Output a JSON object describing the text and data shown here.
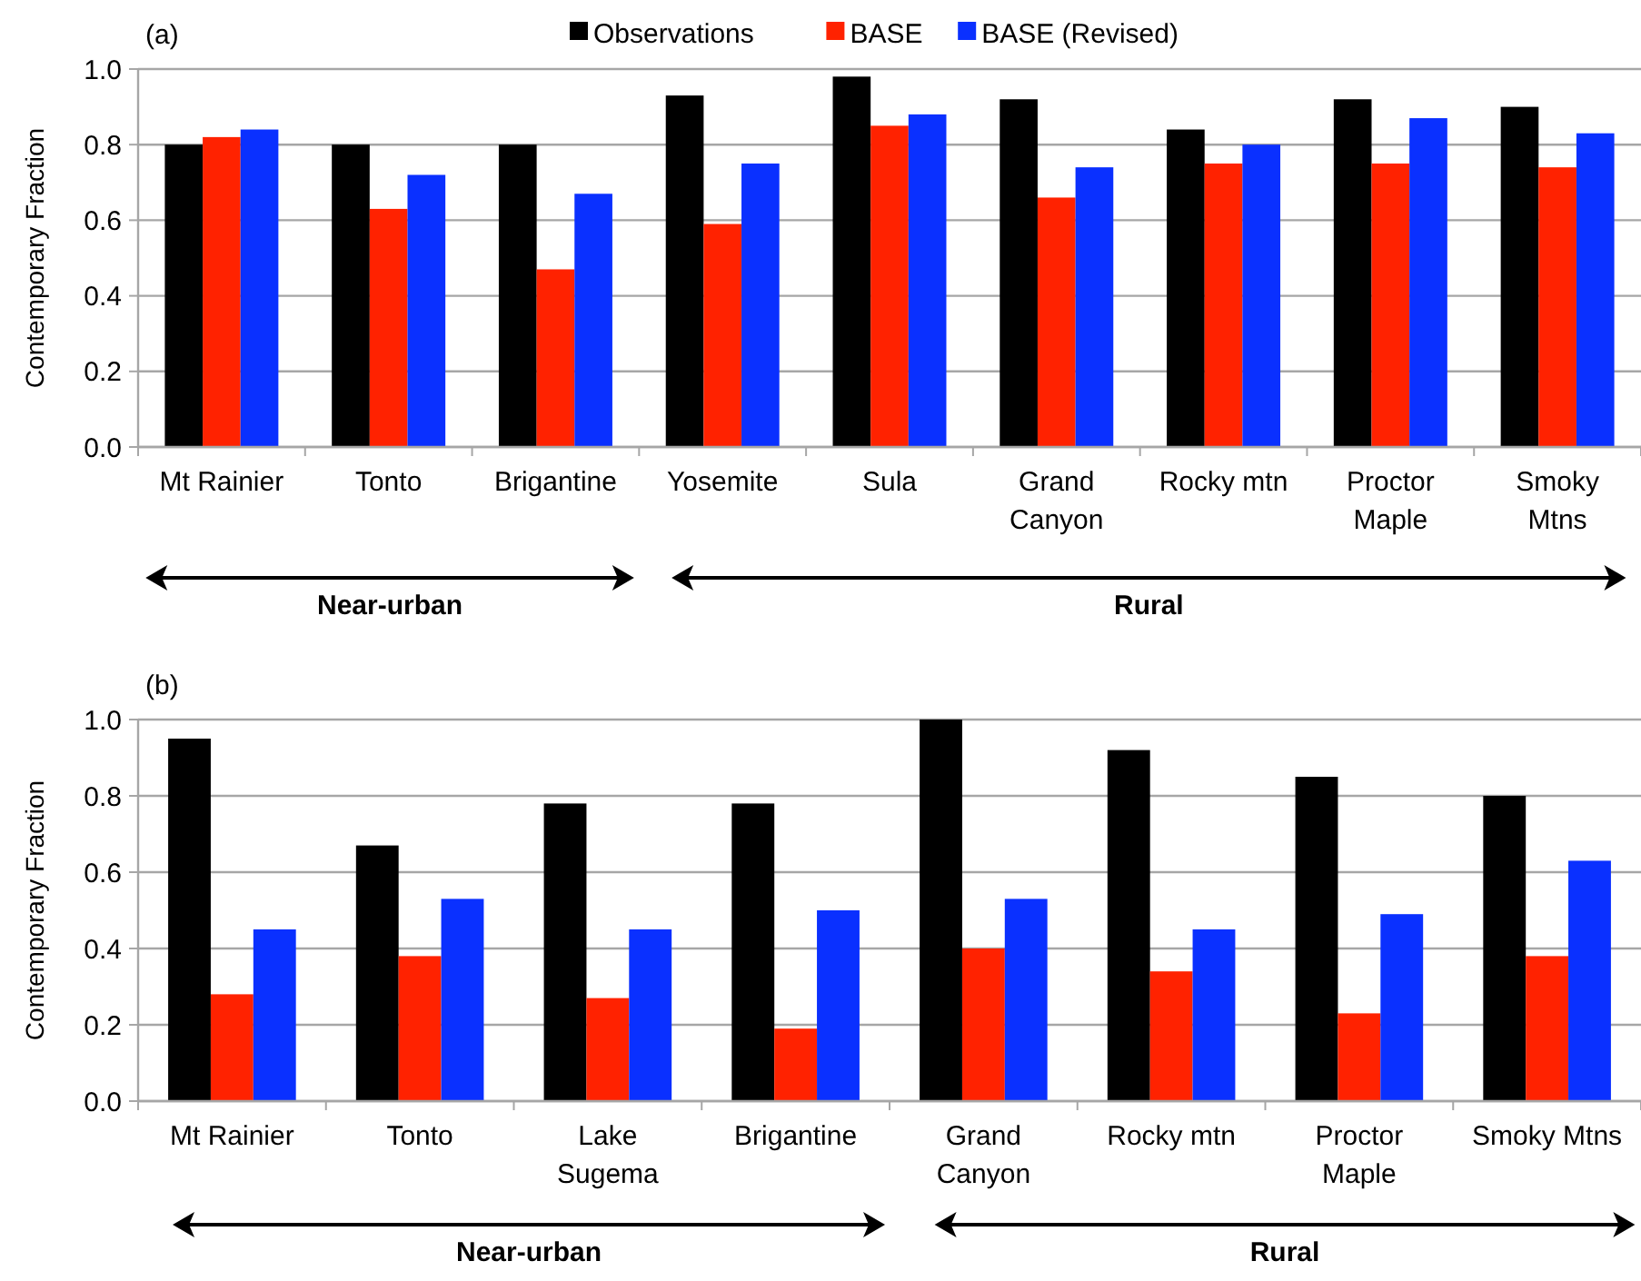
{
  "chart_data": [
    {
      "type": "bar",
      "title": "(a)",
      "ylabel": "Contemporary Fraction",
      "categories": [
        "Mt Rainier",
        "Tonto",
        "Brigantine",
        "Yosemite",
        "Sula",
        "Grand\nCanyon",
        "Rocky mtn",
        "Proctor\nMaple",
        "Smoky\nMtns"
      ],
      "series": [
        {
          "name": "Observations",
          "color": "#000000",
          "values": [
            0.8,
            0.8,
            0.8,
            0.93,
            0.98,
            0.92,
            0.84,
            0.92,
            0.9
          ]
        },
        {
          "name": "BASE",
          "color": "#ff2200",
          "values": [
            0.82,
            0.63,
            0.47,
            0.59,
            0.85,
            0.66,
            0.75,
            0.75,
            0.74
          ]
        },
        {
          "name": "BASE (Revised)",
          "color": "#0a30ff",
          "values": [
            0.84,
            0.72,
            0.67,
            0.75,
            0.88,
            0.74,
            0.8,
            0.87,
            0.83
          ]
        }
      ],
      "ylim": [
        0,
        1
      ],
      "yticks": [
        {
          "value": 0,
          "label": "0.0"
        },
        {
          "value": 0.2,
          "label": "0.2"
        },
        {
          "value": 0.4,
          "label": "0.4"
        },
        {
          "value": 0.6,
          "label": "0.6"
        },
        {
          "value": 0.8,
          "label": "0.8"
        },
        {
          "value": 1,
          "label": "1.0"
        }
      ],
      "grid": "y",
      "legend": "top",
      "annotations": [
        "Near-urban",
        "Rural"
      ]
    },
    {
      "type": "bar",
      "title": "(b)",
      "ylabel": "Contemporary Fraction",
      "categories": [
        "Mt Rainier",
        "Tonto",
        "Lake\nSugema",
        "Brigantine",
        "Grand\nCanyon",
        "Rocky mtn",
        "Proctor\nMaple",
        "Smoky Mtns"
      ],
      "series": [
        {
          "color": "#000000",
          "values": [
            0.95,
            0.67,
            0.78,
            0.78,
            1.0,
            0.92,
            0.85,
            0.8
          ]
        },
        {
          "color": "#ff2200",
          "values": [
            0.28,
            0.38,
            0.27,
            0.19,
            0.4,
            0.34,
            0.23,
            0.38
          ]
        },
        {
          "color": "#0a30ff",
          "values": [
            0.45,
            0.53,
            0.45,
            0.5,
            0.53,
            0.45,
            0.49,
            0.63
          ]
        }
      ],
      "ylim": [
        0,
        1
      ],
      "yticks": [
        {
          "value": 0,
          "label": "0.0"
        },
        {
          "value": 0.2,
          "label": "0.2"
        },
        {
          "value": 0.4,
          "label": "0.4"
        },
        {
          "value": 0.6,
          "label": "0.6"
        },
        {
          "value": 0.8,
          "label": "0.8"
        },
        {
          "value": 1,
          "label": "1.0"
        }
      ],
      "grid": "y",
      "annotations": [
        "Near-urban",
        "Rural"
      ]
    }
  ]
}
